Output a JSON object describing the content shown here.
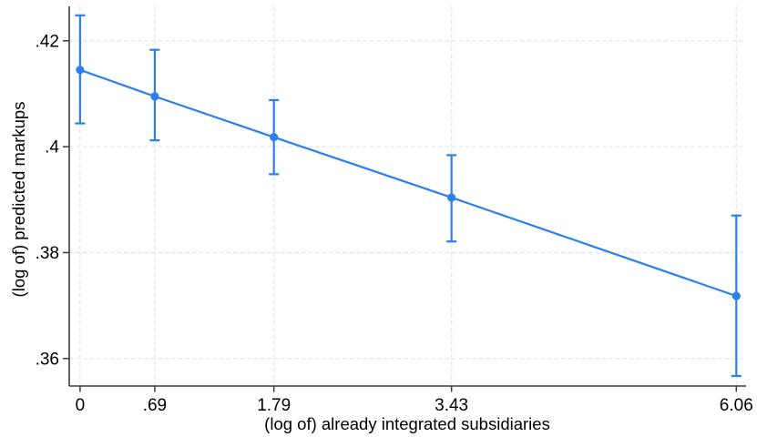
{
  "chart_data": {
    "type": "line",
    "title": "",
    "xlabel": "(log of) already integrated subsidiaries",
    "ylabel": "(log of) predicted markups",
    "x": [
      0,
      0.69,
      1.79,
      3.43,
      6.06
    ],
    "x_tick_labels": [
      "0",
      ".69",
      "1.79",
      "3.43",
      "6.06"
    ],
    "y_ticks": [
      0.42,
      0.4,
      0.38,
      0.36
    ],
    "y_tick_labels": [
      ".42",
      ".4",
      ".38",
      ".36"
    ],
    "xlim": [
      -0.1,
      6.15
    ],
    "ylim": [
      0.3548,
      0.4265
    ],
    "grid": true,
    "grid_style": "dashed",
    "legend": "none",
    "series": [
      {
        "name": "predicted markups (point estimate)",
        "values": [
          0.4145,
          0.4095,
          0.4018,
          0.3904,
          0.3718
        ],
        "ci_low": [
          0.4044,
          0.4012,
          0.3948,
          0.3821,
          0.3567
        ],
        "ci_high": [
          0.4248,
          0.4183,
          0.4088,
          0.3984,
          0.387
        ]
      }
    ]
  },
  "style": {
    "accent": "#2b7ff0",
    "grid_color": "#e5e5e5",
    "axis_color": "#3c3c3c",
    "text_color": "#000000",
    "background": "#ffffff"
  }
}
